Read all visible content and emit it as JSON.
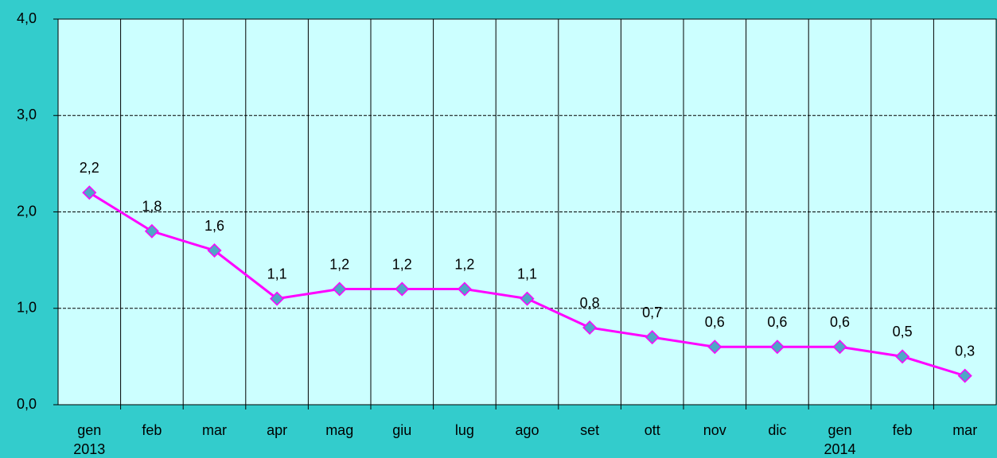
{
  "chart_data": {
    "type": "line",
    "categories": [
      "gen",
      "feb",
      "mar",
      "apr",
      "mag",
      "giu",
      "lug",
      "ago",
      "set",
      "ott",
      "nov",
      "dic",
      "gen",
      "feb",
      "mar"
    ],
    "category_years": [
      "2013",
      null,
      null,
      null,
      null,
      null,
      null,
      null,
      null,
      null,
      null,
      null,
      "2014",
      null,
      null
    ],
    "series": [
      {
        "name": null,
        "color": "#ff00ff",
        "marker_color": "#4ea6c6",
        "values": [
          2.2,
          1.8,
          1.6,
          1.1,
          1.2,
          1.2,
          1.2,
          1.1,
          0.8,
          0.7,
          0.6,
          0.6,
          0.6,
          0.5,
          0.3
        ],
        "value_labels": [
          "2,2",
          "1,8",
          "1,6",
          "1,1",
          "1,2",
          "1,2",
          "1,2",
          "1,1",
          "0,8",
          "0,7",
          "0,6",
          "0,6",
          "0,6",
          "0,5",
          "0,3"
        ]
      }
    ],
    "ylim": [
      0,
      4
    ],
    "yticks": [
      {
        "value": 0,
        "label": "0,0"
      },
      {
        "value": 1,
        "label": "1,0"
      },
      {
        "value": 2,
        "label": "2,0"
      },
      {
        "value": 3,
        "label": "3,0"
      },
      {
        "value": 4,
        "label": "4,0"
      }
    ],
    "grid": true
  }
}
